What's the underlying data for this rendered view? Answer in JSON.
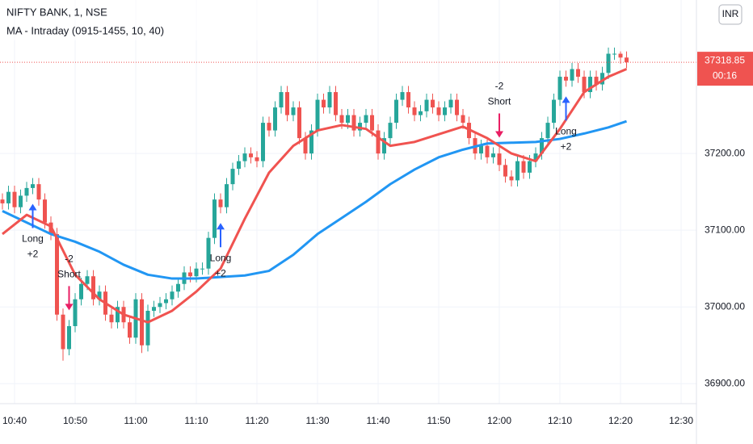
{
  "chart_data": {
    "type": "candlestick",
    "title": "NIFTY BANK, 1, NSE",
    "subtitle": "MA - Intraday (0915-1455, 10, 40)",
    "currency": "INR",
    "up_color": "#26a69a",
    "down_color": "#ef5350",
    "grid": true,
    "x": [
      638,
      639,
      640,
      641,
      642,
      643,
      644,
      645,
      646,
      647,
      648,
      649,
      650,
      651,
      652,
      653,
      654,
      655,
      656,
      657,
      658,
      659,
      660,
      661,
      662,
      663,
      664,
      665,
      666,
      667,
      668,
      669,
      670,
      671,
      672,
      673,
      674,
      675,
      676,
      677,
      678,
      679,
      680,
      681,
      682,
      683,
      684,
      685,
      686,
      687,
      688,
      689,
      690,
      691,
      692,
      693,
      694,
      695,
      696,
      697,
      698,
      699,
      700,
      701,
      702,
      703,
      704,
      705,
      706,
      707,
      708,
      709,
      710,
      711,
      712,
      713,
      714,
      715,
      716,
      717,
      718,
      719,
      720,
      721,
      722,
      723,
      724,
      725,
      726,
      727,
      728,
      729,
      730,
      731,
      732,
      733,
      734,
      735,
      736,
      737,
      738,
      739,
      740,
      741
    ],
    "open": [
      37140,
      37135,
      37150,
      37130,
      37145,
      37155,
      37160,
      37140,
      37110,
      37095,
      36990,
      36945,
      36975,
      37010,
      37030,
      37040,
      37010,
      37020,
      36990,
      36980,
      37000,
      36980,
      36960,
      37010,
      36950,
      36995,
      37000,
      37005,
      37010,
      37020,
      37030,
      37045,
      37040,
      37050,
      37050,
      37090,
      37140,
      37130,
      37160,
      37180,
      37190,
      37200,
      37195,
      37190,
      37240,
      37230,
      37260,
      37280,
      37250,
      37260,
      37220,
      37200,
      37230,
      37270,
      37260,
      37280,
      37250,
      37240,
      37250,
      37230,
      37240,
      37250,
      37230,
      37200,
      37220,
      37240,
      37270,
      37280,
      37260,
      37250,
      37255,
      37270,
      37260,
      37250,
      37260,
      37270,
      37250,
      37240,
      37220,
      37200,
      37210,
      37195,
      37200,
      37185,
      37170,
      37165,
      37190,
      37175,
      37190,
      37200,
      37220,
      37240,
      37270,
      37300,
      37295,
      37310,
      37300,
      37280,
      37300,
      37290,
      37305,
      37330,
      37330,
      37325
    ],
    "high": [
      37148,
      37158,
      37158,
      37153,
      37163,
      37168,
      37168,
      37148,
      37118,
      37103,
      36998,
      36983,
      37018,
      37038,
      37048,
      37048,
      37028,
      37028,
      36998,
      37008,
      37008,
      36988,
      37018,
      37018,
      37003,
      37008,
      37013,
      37018,
      37028,
      37038,
      37053,
      37053,
      37058,
      37058,
      37098,
      37148,
      37148,
      37168,
      37188,
      37198,
      37208,
      37208,
      37203,
      37248,
      37248,
      37268,
      37288,
      37288,
      37268,
      37268,
      37228,
      37238,
      37278,
      37278,
      37288,
      37288,
      37258,
      37258,
      37258,
      37248,
      37258,
      37258,
      37238,
      37228,
      37248,
      37278,
      37288,
      37288,
      37268,
      37263,
      37278,
      37278,
      37268,
      37268,
      37278,
      37278,
      37258,
      37248,
      37228,
      37218,
      37218,
      37208,
      37208,
      37193,
      37178,
      37198,
      37198,
      37198,
      37208,
      37228,
      37248,
      37278,
      37308,
      37308,
      37318,
      37318,
      37308,
      37308,
      37308,
      37313,
      37338,
      37338,
      37333,
      37333
    ],
    "low": [
      37127,
      37127,
      37122,
      37122,
      37137,
      37147,
      37132,
      37102,
      37087,
      36982,
      36930,
      36937,
      36967,
      37002,
      37022,
      37002,
      37002,
      36982,
      36972,
      36972,
      36972,
      36952,
      36952,
      36940,
      36942,
      36987,
      36992,
      36997,
      37002,
      37012,
      37022,
      37032,
      37032,
      37042,
      37042,
      37082,
      37122,
      37122,
      37152,
      37172,
      37182,
      37187,
      37182,
      37182,
      37222,
      37222,
      37252,
      37242,
      37242,
      37212,
      37192,
      37192,
      37222,
      37252,
      37252,
      37242,
      37232,
      37232,
      37222,
      37222,
      37232,
      37222,
      37192,
      37192,
      37212,
      37232,
      37262,
      37252,
      37242,
      37242,
      37247,
      37252,
      37242,
      37242,
      37252,
      37242,
      37232,
      37212,
      37192,
      37192,
      37187,
      37187,
      37177,
      37162,
      37157,
      37157,
      37167,
      37167,
      37182,
      37192,
      37212,
      37232,
      37262,
      37287,
      37287,
      37292,
      37272,
      37272,
      37282,
      37282,
      37297,
      37322,
      37317,
      37311
    ],
    "close": [
      37135,
      37150,
      37130,
      37145,
      37155,
      37160,
      37140,
      37110,
      37095,
      36990,
      36945,
      36975,
      37010,
      37030,
      37040,
      37010,
      37020,
      36990,
      36980,
      37000,
      36980,
      36960,
      37010,
      36950,
      36995,
      37000,
      37005,
      37010,
      37020,
      37030,
      37045,
      37040,
      37050,
      37050,
      37090,
      37140,
      37130,
      37160,
      37180,
      37190,
      37200,
      37195,
      37190,
      37240,
      37230,
      37260,
      37280,
      37250,
      37260,
      37220,
      37200,
      37230,
      37270,
      37260,
      37280,
      37250,
      37240,
      37250,
      37230,
      37240,
      37250,
      37230,
      37200,
      37220,
      37240,
      37270,
      37280,
      37260,
      37250,
      37255,
      37270,
      37260,
      37250,
      37260,
      37270,
      37250,
      37240,
      37220,
      37200,
      37210,
      37195,
      37200,
      37185,
      37170,
      37165,
      37190,
      37175,
      37190,
      37200,
      37220,
      37240,
      37270,
      37300,
      37295,
      37310,
      37300,
      37280,
      37300,
      37290,
      37305,
      37330,
      37330,
      37325,
      37318.85
    ],
    "series": [
      {
        "color": "#2196f3",
        "x": [
          638,
          642,
          646,
          650,
          654,
          658,
          662,
          666,
          670,
          674,
          678,
          682,
          686,
          690,
          694,
          698,
          702,
          706,
          710,
          714,
          718,
          722,
          726,
          730,
          734,
          738,
          741
        ],
        "values": [
          37125,
          37110,
          37095,
          37085,
          37072,
          37055,
          37042,
          37037,
          37037,
          37039,
          37041,
          37047,
          37068,
          37095,
          37116,
          37137,
          37160,
          37179,
          37195,
          37205,
          37213,
          37214,
          37215,
          37219,
          37226,
          37234,
          37242
        ]
      },
      {
        "color": "#f05350",
        "x": [
          638,
          642,
          646,
          650,
          654,
          658,
          662,
          666,
          670,
          674,
          678,
          682,
          686,
          690,
          694,
          698,
          702,
          706,
          710,
          714,
          718,
          722,
          726,
          730,
          734,
          738,
          741
        ],
        "values": [
          37095,
          37120,
          37105,
          37042,
          37010,
          36990,
          36980,
          36995,
          37020,
          37050,
          37115,
          37175,
          37210,
          37230,
          37237,
          37232,
          37210,
          37215,
          37225,
          37235,
          37220,
          37200,
          37190,
          37232,
          37280,
          37300,
          37310
        ]
      }
    ],
    "signals": [
      {
        "x": 643,
        "label": "Long",
        "qty": "+2"
      },
      {
        "x": 649,
        "label": "Short",
        "qty": "-2"
      },
      {
        "x": 674,
        "label": "Long",
        "qty": "+2"
      },
      {
        "x": 720,
        "label": "Short",
        "qty": "-2"
      },
      {
        "x": 731,
        "label": "Long",
        "qty": "+2"
      }
    ],
    "last_price": 37318.85,
    "countdown": "00:16",
    "xlim": [
      637.6,
      752.53
    ],
    "ylim": [
      36874,
      37400
    ],
    "xticks": [
      {
        "value": 640,
        "label": "10:40"
      },
      {
        "value": 650,
        "label": "10:50"
      },
      {
        "value": 660,
        "label": "11:00"
      },
      {
        "value": 670,
        "label": "11:10"
      },
      {
        "value": 680,
        "label": "11:20"
      },
      {
        "value": 690,
        "label": "11:30"
      },
      {
        "value": 700,
        "label": "11:40"
      },
      {
        "value": 710,
        "label": "11:50"
      },
      {
        "value": 720,
        "label": "12:00"
      },
      {
        "value": 730,
        "label": "12:10"
      },
      {
        "value": 740,
        "label": "12:20"
      },
      {
        "value": 750,
        "label": "12:30"
      }
    ],
    "yticks": [
      {
        "value": 36900,
        "label": "36900.00"
      },
      {
        "value": 37000,
        "label": "37000.00"
      },
      {
        "value": 37100,
        "label": "37100.00"
      },
      {
        "value": 37200,
        "label": "37200.00"
      }
    ]
  }
}
